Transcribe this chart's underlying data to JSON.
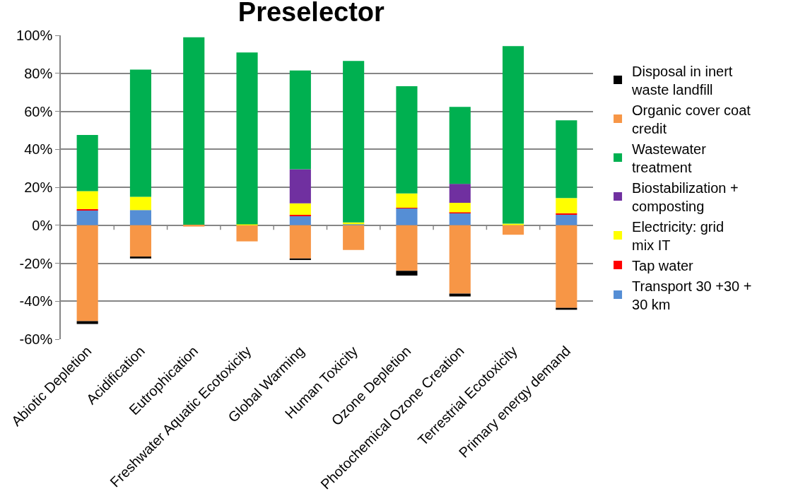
{
  "chart_data": {
    "type": "bar",
    "title": "Preselector",
    "stacked": true,
    "categories": [
      "Abiotic Depletion",
      "Acidification",
      "Eutrophication",
      "Freshwater Aquatic Ecotoxicity",
      "Global Warming",
      "Human Toxicity",
      "Ozone Depletion",
      "Photochemical Ozone Creation",
      "Terrestrial Ecotoxicity",
      "Primary energy demand"
    ],
    "series": [
      {
        "name": "Transport 30 +30 + 30 km",
        "color": "#558ed5",
        "values": [
          8,
          8,
          null,
          null,
          5,
          0.5,
          9,
          6.5,
          null,
          5.5
        ]
      },
      {
        "name": "Tap water",
        "color": "#ff0000",
        "values": [
          0.5,
          null,
          null,
          null,
          0.5,
          null,
          0.2,
          0.3,
          null,
          0.8
        ]
      },
      {
        "name": "Electricity: grid mix IT",
        "color": "#ffff00",
        "values": [
          9.5,
          7,
          null,
          0.5,
          6,
          1,
          7.5,
          5,
          0.8,
          8
        ]
      },
      {
        "name": "Biostabilization + composting",
        "color": "#7030a0",
        "values": [
          null,
          null,
          null,
          null,
          18,
          null,
          null,
          10,
          null,
          null
        ]
      },
      {
        "name": "Wastewater treatment",
        "color": "#00b050",
        "values": [
          29.5,
          67,
          99,
          90.5,
          52,
          85,
          56.5,
          40.5,
          93.5,
          41
        ]
      },
      {
        "name": "Organic cover coat credit",
        "color": "#f79646",
        "values": [
          -50.5,
          -16.5,
          -0.7,
          -8.5,
          -17.5,
          -13,
          -24,
          -36,
          -5,
          -43.5
        ]
      },
      {
        "name": "Disposal in inert waste landfill",
        "color": "#000000",
        "values": [
          -1.5,
          -1,
          null,
          null,
          -0.8,
          null,
          -2.5,
          -1.5,
          null,
          -1
        ]
      }
    ],
    "ylim": [
      -60,
      100
    ],
    "yticks": [
      {
        "value": -60,
        "label": "-60%"
      },
      {
        "value": -40,
        "label": "-40%"
      },
      {
        "value": -20,
        "label": "-20%"
      },
      {
        "value": 0,
        "label": "0%"
      },
      {
        "value": 20,
        "label": "20%"
      },
      {
        "value": 40,
        "label": "40%"
      },
      {
        "value": 60,
        "label": "60%"
      },
      {
        "value": 80,
        "label": "80%"
      },
      {
        "value": 100,
        "label": "100%"
      }
    ],
    "grid": "y",
    "legend": "right"
  }
}
